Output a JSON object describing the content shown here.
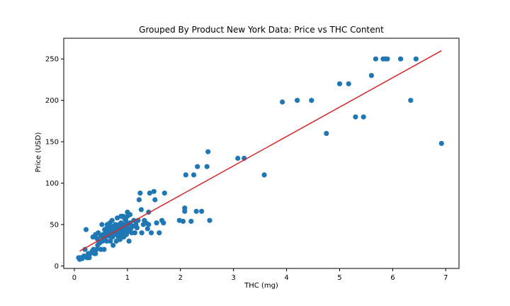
{
  "chart_data": {
    "type": "scatter",
    "title": "Grouped By Product New York Data: Price vs THC Content",
    "xlabel": "THC (mg)",
    "ylabel": "Price (USD)",
    "xlim": [
      -0.2,
      7.25
    ],
    "ylim": [
      -3,
      275
    ],
    "xticks": [
      0,
      1,
      2,
      3,
      4,
      5,
      6,
      7
    ],
    "yticks": [
      0,
      50,
      100,
      150,
      200,
      250
    ],
    "grid": false,
    "point_color": "#1f77b4",
    "line_color": "#d62728",
    "trend_line": {
      "x": [
        0.1,
        6.92
      ],
      "y": [
        18,
        260
      ]
    },
    "points": [
      [
        0.08,
        10
      ],
      [
        0.1,
        8
      ],
      [
        0.12,
        10
      ],
      [
        0.15,
        9
      ],
      [
        0.18,
        12
      ],
      [
        0.2,
        20
      ],
      [
        0.22,
        44
      ],
      [
        0.24,
        10
      ],
      [
        0.26,
        15
      ],
      [
        0.28,
        10
      ],
      [
        0.3,
        15
      ],
      [
        0.32,
        16
      ],
      [
        0.34,
        18
      ],
      [
        0.35,
        35
      ],
      [
        0.36,
        20
      ],
      [
        0.38,
        15
      ],
      [
        0.4,
        38
      ],
      [
        0.4,
        15
      ],
      [
        0.42,
        20
      ],
      [
        0.43,
        33
      ],
      [
        0.44,
        25
      ],
      [
        0.45,
        40
      ],
      [
        0.46,
        30
      ],
      [
        0.48,
        28
      ],
      [
        0.5,
        36
      ],
      [
        0.5,
        20
      ],
      [
        0.52,
        50
      ],
      [
        0.53,
        30
      ],
      [
        0.54,
        38
      ],
      [
        0.55,
        32
      ],
      [
        0.56,
        20
      ],
      [
        0.57,
        44
      ],
      [
        0.58,
        35
      ],
      [
        0.59,
        40
      ],
      [
        0.6,
        45
      ],
      [
        0.61,
        30
      ],
      [
        0.62,
        50
      ],
      [
        0.63,
        38
      ],
      [
        0.64,
        42
      ],
      [
        0.65,
        48
      ],
      [
        0.66,
        36
      ],
      [
        0.67,
        52
      ],
      [
        0.68,
        30
      ],
      [
        0.69,
        45
      ],
      [
        0.7,
        40
      ],
      [
        0.71,
        55
      ],
      [
        0.72,
        35
      ],
      [
        0.73,
        25
      ],
      [
        0.74,
        48
      ],
      [
        0.75,
        44
      ],
      [
        0.76,
        38
      ],
      [
        0.77,
        50
      ],
      [
        0.78,
        42
      ],
      [
        0.79,
        30
      ],
      [
        0.8,
        46
      ],
      [
        0.81,
        58
      ],
      [
        0.82,
        40
      ],
      [
        0.83,
        35
      ],
      [
        0.84,
        50
      ],
      [
        0.85,
        44
      ],
      [
        0.86,
        32
      ],
      [
        0.87,
        48
      ],
      [
        0.88,
        52
      ],
      [
        0.89,
        38
      ],
      [
        0.9,
        45
      ],
      [
        0.91,
        40
      ],
      [
        0.92,
        60
      ],
      [
        0.93,
        35
      ],
      [
        0.94,
        50
      ],
      [
        0.95,
        42
      ],
      [
        0.96,
        48
      ],
      [
        0.97,
        55
      ],
      [
        0.98,
        38
      ],
      [
        0.99,
        45
      ],
      [
        1.0,
        60
      ],
      [
        1.01,
        50
      ],
      [
        1.02,
        42
      ],
      [
        1.03,
        30
      ],
      [
        1.05,
        52
      ],
      [
        1.06,
        45
      ],
      [
        1.08,
        40
      ],
      [
        1.1,
        48
      ],
      [
        1.12,
        55
      ],
      [
        1.14,
        40
      ],
      [
        1.16,
        50
      ],
      [
        1.18,
        46
      ],
      [
        1.2,
        55
      ],
      [
        1.22,
        80
      ],
      [
        1.24,
        88
      ],
      [
        1.26,
        68
      ],
      [
        1.27,
        40
      ],
      [
        1.3,
        50
      ],
      [
        1.32,
        55
      ],
      [
        1.35,
        52
      ],
      [
        1.38,
        45
      ],
      [
        1.4,
        50
      ],
      [
        1.4,
        65
      ],
      [
        1.42,
        88
      ],
      [
        1.45,
        40
      ],
      [
        1.5,
        90
      ],
      [
        1.52,
        80
      ],
      [
        1.55,
        52
      ],
      [
        1.6,
        40
      ],
      [
        1.65,
        55
      ],
      [
        1.68,
        52
      ],
      [
        1.7,
        88
      ],
      [
        1.0,
        65
      ],
      [
        1.05,
        62
      ],
      [
        0.95,
        57
      ],
      [
        0.88,
        60
      ],
      [
        1.98,
        55
      ],
      [
        2.05,
        54
      ],
      [
        2.08,
        70
      ],
      [
        2.08,
        66
      ],
      [
        2.1,
        110
      ],
      [
        2.2,
        54
      ],
      [
        2.25,
        110
      ],
      [
        2.3,
        66
      ],
      [
        2.32,
        120
      ],
      [
        2.4,
        66
      ],
      [
        2.5,
        120
      ],
      [
        2.52,
        138
      ],
      [
        2.55,
        55
      ],
      [
        3.08,
        130
      ],
      [
        3.2,
        130
      ],
      [
        3.58,
        110
      ],
      [
        3.92,
        198
      ],
      [
        4.2,
        200
      ],
      [
        4.47,
        200
      ],
      [
        4.75,
        160
      ],
      [
        5.0,
        220
      ],
      [
        5.17,
        220
      ],
      [
        5.3,
        180
      ],
      [
        5.45,
        180
      ],
      [
        5.6,
        230
      ],
      [
        5.68,
        250
      ],
      [
        5.82,
        250
      ],
      [
        5.86,
        250
      ],
      [
        5.9,
        250
      ],
      [
        6.15,
        250
      ],
      [
        6.34,
        200
      ],
      [
        6.44,
        250
      ],
      [
        6.92,
        148
      ]
    ]
  }
}
